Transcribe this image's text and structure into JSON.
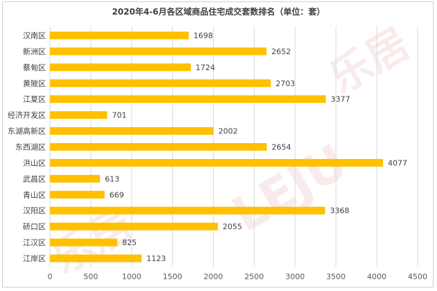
{
  "chart_data": {
    "type": "bar",
    "orientation": "horizontal",
    "title": "2020年4-6月各区域商品住宅成交套数排名（单位：套）",
    "categories": [
      "汉南区",
      "新洲区",
      "蔡甸区",
      "黄陂区",
      "江夏区",
      "经济开发区",
      "东湖高新区",
      "东西湖区",
      "洪山区",
      "武昌区",
      "青山区",
      "汉阳区",
      "硚口区",
      "江汉区",
      "江岸区"
    ],
    "values": [
      1698,
      2652,
      1724,
      2703,
      3377,
      701,
      2002,
      2654,
      4077,
      613,
      669,
      3368,
      2055,
      825,
      1123
    ],
    "xlim": [
      0,
      4500
    ],
    "xticks": [
      0,
      500,
      1000,
      1500,
      2000,
      2500,
      3000,
      3500,
      4000,
      4500
    ],
    "grid": "vertical",
    "colors": {
      "bar": "#FFC000",
      "grid": "#d9d9d9",
      "text": "#404040"
    }
  }
}
